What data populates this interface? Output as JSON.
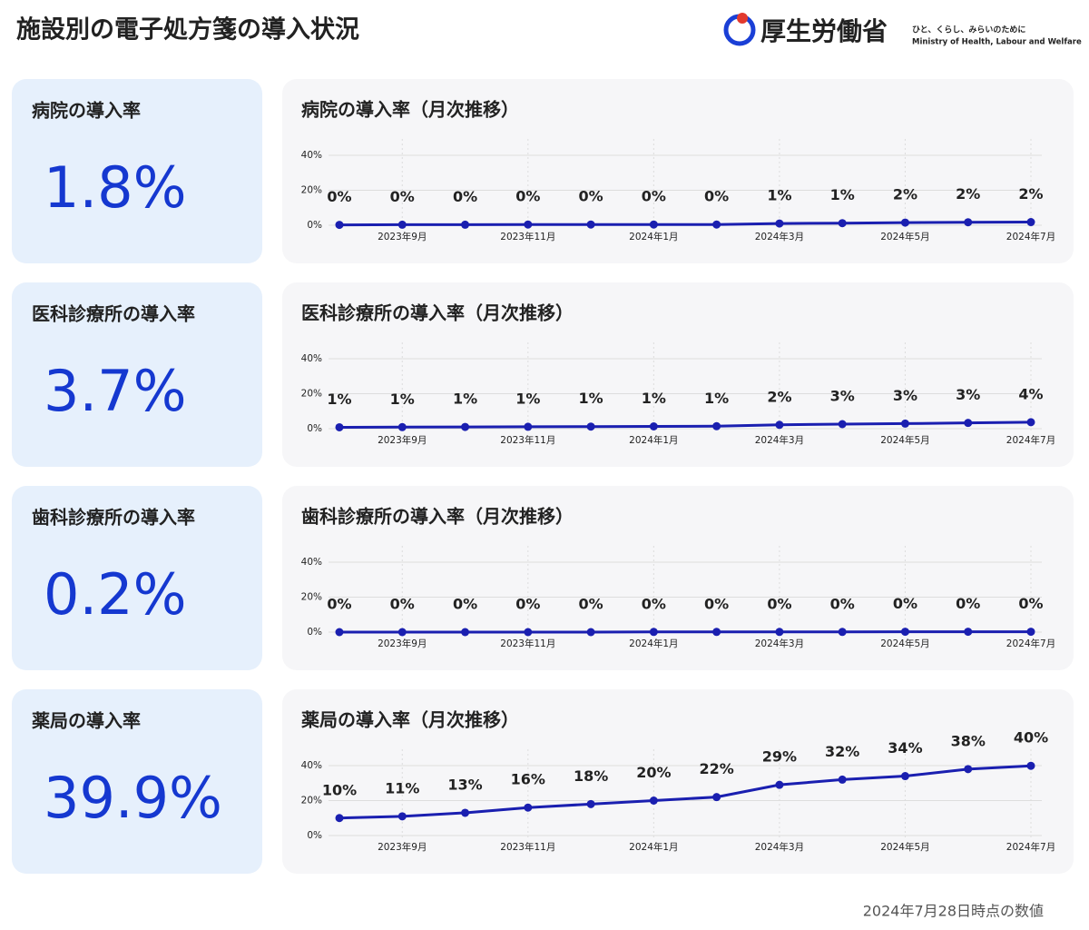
{
  "header": {
    "title": "施設別の電子処方箋の導入状況",
    "logo_name": "厚生労働省",
    "logo_tagline": "ひと、くらし、みらいのために",
    "logo_english": "Ministry of Health, Labour and Welfare"
  },
  "kpis": [
    {
      "label": "病院の導入率",
      "value": "1.8%"
    },
    {
      "label": "医科診療所の導入率",
      "value": "3.7%"
    },
    {
      "label": "歯科診療所の導入率",
      "value": "0.2%"
    },
    {
      "label": "薬局の導入率",
      "value": "39.9%"
    }
  ],
  "chart_data": [
    {
      "type": "line",
      "title": "病院の導入率（月次推移）",
      "categories": [
        null,
        "2023年9月",
        null,
        "2023年11月",
        null,
        "2024年1月",
        null,
        "2024年3月",
        null,
        "2024年5月",
        null,
        "2024年7月"
      ],
      "values": [
        0.2,
        0.3,
        0.3,
        0.4,
        0.4,
        0.4,
        0.4,
        1.0,
        1.2,
        1.5,
        1.7,
        1.8
      ],
      "value_labels": [
        "0%",
        "0%",
        "0%",
        "0%",
        "0%",
        "0%",
        "0%",
        "1%",
        "1%",
        "2%",
        "2%",
        "2%"
      ],
      "color": "#1a1fb0",
      "ylim": [
        0,
        40
      ],
      "yticks": [
        {
          "value": 0,
          "label": "0%"
        },
        {
          "value": 20,
          "label": "20%"
        },
        {
          "value": 40,
          "label": "40%"
        }
      ],
      "grid": true
    },
    {
      "type": "line",
      "title": "医科診療所の導入率（月次推移）",
      "categories": [
        null,
        "2023年9月",
        null,
        "2023年11月",
        null,
        "2024年1月",
        null,
        "2024年3月",
        null,
        "2024年5月",
        null,
        "2024年7月"
      ],
      "values": [
        0.8,
        0.9,
        1.0,
        1.1,
        1.2,
        1.3,
        1.4,
        2.2,
        2.6,
        2.9,
        3.3,
        3.7
      ],
      "value_labels": [
        "1%",
        "1%",
        "1%",
        "1%",
        "1%",
        "1%",
        "1%",
        "2%",
        "3%",
        "3%",
        "3%",
        "4%"
      ],
      "color": "#1a1fb0",
      "ylim": [
        0,
        40
      ],
      "yticks": [
        {
          "value": 0,
          "label": "0%"
        },
        {
          "value": 20,
          "label": "20%"
        },
        {
          "value": 40,
          "label": "40%"
        }
      ],
      "grid": true
    },
    {
      "type": "line",
      "title": "歯科診療所の導入率（月次推移）",
      "categories": [
        null,
        "2023年9月",
        null,
        "2023年11月",
        null,
        "2024年1月",
        null,
        "2024年3月",
        null,
        "2024年5月",
        null,
        "2024年7月"
      ],
      "values": [
        0.0,
        0.0,
        0.0,
        0.0,
        0.0,
        0.1,
        0.1,
        0.1,
        0.1,
        0.2,
        0.2,
        0.2
      ],
      "value_labels": [
        "0%",
        "0%",
        "0%",
        "0%",
        "0%",
        "0%",
        "0%",
        "0%",
        "0%",
        "0%",
        "0%",
        "0%"
      ],
      "color": "#1a1fb0",
      "ylim": [
        0,
        40
      ],
      "yticks": [
        {
          "value": 0,
          "label": "0%"
        },
        {
          "value": 20,
          "label": "20%"
        },
        {
          "value": 40,
          "label": "40%"
        }
      ],
      "grid": true
    },
    {
      "type": "line",
      "title": "薬局の導入率（月次推移）",
      "categories": [
        null,
        "2023年9月",
        null,
        "2023年11月",
        null,
        "2024年1月",
        null,
        "2024年3月",
        null,
        "2024年5月",
        null,
        "2024年7月"
      ],
      "values": [
        10,
        11,
        13,
        16,
        18,
        20,
        22,
        29,
        32,
        34,
        38,
        39.9
      ],
      "value_labels": [
        "10%",
        "11%",
        "13%",
        "16%",
        "18%",
        "20%",
        "22%",
        "29%",
        "32%",
        "34%",
        "38%",
        "40%"
      ],
      "color": "#1a1fb0",
      "ylim": [
        0,
        40
      ],
      "yticks": [
        {
          "value": 0,
          "label": "0%"
        },
        {
          "value": 20,
          "label": "20%"
        },
        {
          "value": 40,
          "label": "40%"
        }
      ],
      "grid": true
    }
  ],
  "footer": "2024年7月28日時点の数値"
}
